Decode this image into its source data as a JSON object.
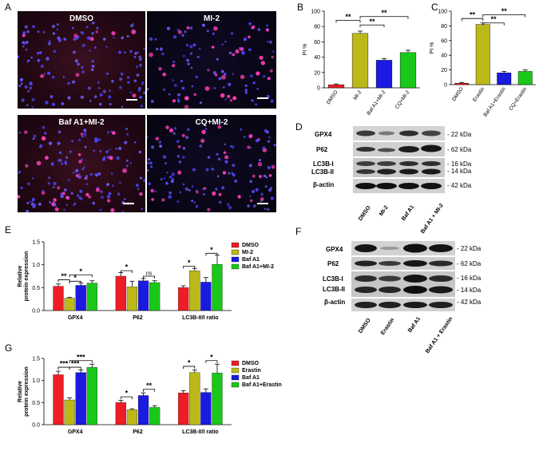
{
  "panels": {
    "A": "A",
    "B": "B",
    "C": "C",
    "D": "D",
    "E": "E",
    "F": "F",
    "G": "G"
  },
  "panel_a": {
    "images": [
      {
        "title": "DMSO"
      },
      {
        "title": "MI-2"
      },
      {
        "title": "Baf A1+MI-2"
      },
      {
        "title": "CQ+MI-2"
      }
    ]
  },
  "blot_d": {
    "rows": [
      "GPX4",
      "P62",
      "LC3B-I",
      "LC3B-II",
      "β-actin"
    ],
    "kda": [
      "- 22 kDa",
      "- 62 kDa",
      "- 16 kDa",
      "- 14 kDa",
      "- 42 kDa"
    ],
    "lanes": [
      "DMSO",
      "MI-2",
      "Baf A1",
      "Baf A1 + MI-2"
    ]
  },
  "blot_f": {
    "rows": [
      "GPX4",
      "P62",
      "LC3B-I",
      "LC3B-II",
      "β-actin"
    ],
    "kda": [
      "- 22 kDa",
      "- 62 kDa",
      "- 16 kDa",
      "- 14 kDa",
      "- 42 kDa"
    ],
    "lanes": [
      "DMSO",
      "Erastin",
      "Baf A1",
      "Baf A1 + Erastin"
    ]
  },
  "colors": {
    "red": "#ee1c24",
    "olive": "#bcb81a",
    "blue": "#1a1ae0",
    "green": "#19c819"
  },
  "chart_data": [
    {
      "id": "B",
      "type": "bar",
      "ylabel": "PI %",
      "ylim": [
        0,
        100
      ],
      "yticks": [
        0,
        20,
        40,
        60,
        80,
        100
      ],
      "categories": [
        "DMSO",
        "MI-2",
        "Baf A1+MI-2",
        "CQ+MI-2"
      ],
      "values": [
        4,
        71,
        36,
        46
      ],
      "errors": [
        1,
        3,
        2,
        3
      ],
      "colors": [
        "#ee1c24",
        "#bcb81a",
        "#1a1ae0",
        "#19c819"
      ],
      "significance": [
        {
          "from": 0,
          "to": 1,
          "label": "**",
          "level": 88
        },
        {
          "from": 1,
          "to": 2,
          "label": "**",
          "level": 82
        },
        {
          "from": 1,
          "to": 3,
          "label": "**",
          "level": 93
        }
      ]
    },
    {
      "id": "C",
      "type": "bar",
      "ylabel": "PI %",
      "ylim": [
        0,
        100
      ],
      "yticks": [
        0,
        20,
        40,
        60,
        80,
        100
      ],
      "categories": [
        "DMSO",
        "Erastin",
        "Baf A1+Erastin",
        "CQ+Erastin"
      ],
      "values": [
        2,
        82,
        16,
        18
      ],
      "errors": [
        1,
        2,
        2,
        2
      ],
      "colors": [
        "#ee1c24",
        "#bcb81a",
        "#1a1ae0",
        "#19c819"
      ],
      "significance": [
        {
          "from": 0,
          "to": 1,
          "label": "**",
          "level": 90
        },
        {
          "from": 1,
          "to": 2,
          "label": "**",
          "level": 84
        },
        {
          "from": 1,
          "to": 3,
          "label": "**",
          "level": 95
        }
      ]
    },
    {
      "id": "E",
      "type": "bar",
      "ylabel": "Relative protein expression",
      "ylim": [
        0,
        1.5
      ],
      "yticks": [
        0,
        0.5,
        1.0,
        1.5
      ],
      "ytick_labels": [
        "0.0",
        "0.5",
        "1.0",
        "1.5"
      ],
      "categories": [
        "GPX4",
        "P62",
        "LC3B-II/I ratio"
      ],
      "series": [
        {
          "name": "DMSO",
          "color": "#ee1c24",
          "values": [
            0.53,
            0.75,
            0.5
          ],
          "errors": [
            0.05,
            0.08,
            0.04
          ]
        },
        {
          "name": "MI-2",
          "color": "#bcb81a",
          "values": [
            0.27,
            0.52,
            0.87
          ],
          "errors": [
            0.02,
            0.12,
            0.05
          ]
        },
        {
          "name": "Baf A1",
          "color": "#1a1ae0",
          "values": [
            0.55,
            0.65,
            0.62
          ],
          "errors": [
            0.05,
            0.05,
            0.1
          ]
        },
        {
          "name": "Baf A1+MI-2",
          "color": "#19c819",
          "values": [
            0.6,
            0.61,
            1.01
          ],
          "errors": [
            0.05,
            0.04,
            0.2
          ]
        }
      ],
      "significance": [
        {
          "group": 0,
          "from": 0,
          "to": 1,
          "label": "**",
          "level": 0.67
        },
        {
          "group": 0,
          "from": 1,
          "to": 2,
          "label": "*",
          "level": 0.64
        },
        {
          "group": 0,
          "from": 1,
          "to": 3,
          "label": "*",
          "level": 0.78
        },
        {
          "group": 1,
          "from": 0,
          "to": 1,
          "label": "*",
          "level": 0.87
        },
        {
          "group": 1,
          "from": 2,
          "to": 3,
          "label": "ns",
          "level": 0.75
        },
        {
          "group": 2,
          "from": 0,
          "to": 1,
          "label": "*",
          "level": 0.97
        },
        {
          "group": 2,
          "from": 2,
          "to": 3,
          "label": "*",
          "level": 1.25
        }
      ]
    },
    {
      "id": "G",
      "type": "bar",
      "ylabel": "Relative protein expression",
      "ylim": [
        0,
        1.5
      ],
      "yticks": [
        0,
        0.5,
        1.0,
        1.5
      ],
      "ytick_labels": [
        "0.0",
        "0.5",
        "1.0",
        "1.5"
      ],
      "categories": [
        "GPX4",
        "P62",
        "LC3B-II/I ratio"
      ],
      "series": [
        {
          "name": "DMSO",
          "color": "#ee1c24",
          "values": [
            1.13,
            0.5,
            0.72
          ],
          "errors": [
            0.08,
            0.05,
            0.05
          ]
        },
        {
          "name": "Erastin",
          "color": "#bcb81a",
          "values": [
            0.56,
            0.34,
            1.18
          ],
          "errors": [
            0.05,
            0.02,
            0.06
          ]
        },
        {
          "name": "Baf A1",
          "color": "#1a1ae0",
          "values": [
            1.18,
            0.66,
            0.73
          ],
          "errors": [
            0.06,
            0.06,
            0.08
          ]
        },
        {
          "name": "Baf A1+Erastin",
          "color": "#19c819",
          "values": [
            1.3,
            0.39,
            1.17
          ],
          "errors": [
            0.07,
            0.04,
            0.2
          ]
        }
      ],
      "significance": [
        {
          "group": 0,
          "from": 0,
          "to": 1,
          "label": "***",
          "level": 1.3
        },
        {
          "group": 0,
          "from": 1,
          "to": 2,
          "label": "***",
          "level": 1.3
        },
        {
          "group": 0,
          "from": 1,
          "to": 3,
          "label": "***",
          "level": 1.45
        },
        {
          "group": 1,
          "from": 0,
          "to": 1,
          "label": "*",
          "level": 0.63
        },
        {
          "group": 1,
          "from": 2,
          "to": 3,
          "label": "**",
          "level": 0.8
        },
        {
          "group": 2,
          "from": 0,
          "to": 1,
          "label": "*",
          "level": 1.32
        },
        {
          "group": 2,
          "from": 2,
          "to": 3,
          "label": "*",
          "level": 1.45
        }
      ]
    }
  ]
}
